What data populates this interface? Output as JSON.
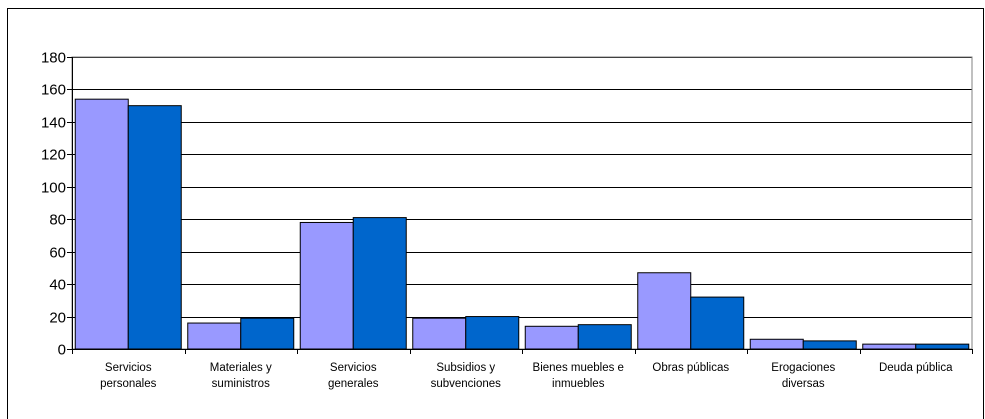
{
  "chart_data": {
    "type": "bar",
    "title": "",
    "xlabel": "",
    "ylabel": "",
    "ylim": [
      0,
      180
    ],
    "yticks": [
      0,
      20,
      40,
      60,
      80,
      100,
      120,
      140,
      160,
      180
    ],
    "grid": true,
    "legend": "none",
    "categories": [
      [
        "Servicios",
        "personales"
      ],
      [
        "Materiales y",
        "suministros"
      ],
      [
        "Servicios",
        "generales"
      ],
      [
        "Subsidios y",
        "subvenciones"
      ],
      [
        "Bienes muebles e",
        "inmuebles"
      ],
      [
        "Obras públicas"
      ],
      [
        "Erogaciones",
        "diversas"
      ],
      [
        "Deuda pública"
      ]
    ],
    "series": [
      {
        "color": "#9999ff",
        "values": [
          154,
          16,
          78,
          19,
          14,
          47,
          6,
          3
        ]
      },
      {
        "color": "#0066cc",
        "values": [
          150,
          19,
          81,
          20,
          15,
          32,
          5,
          3
        ]
      }
    ]
  }
}
